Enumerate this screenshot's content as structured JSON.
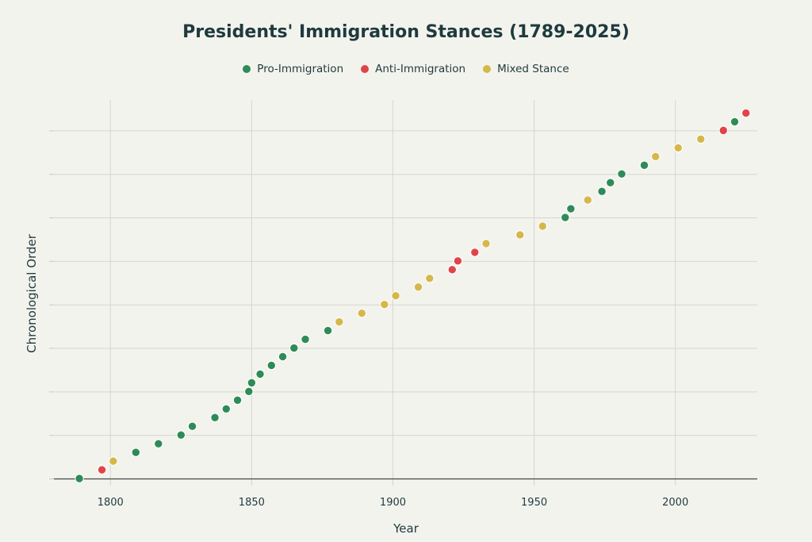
{
  "chart_data": {
    "type": "scatter",
    "title": "Presidents' Immigration Stances (1789-2025)",
    "xlabel": "Year",
    "ylabel": "Chronological Order",
    "xlim": [
      1780,
      2029
    ],
    "ylim": [
      1,
      44.5
    ],
    "x_ticks": [
      1800,
      1850,
      1900,
      1950,
      2000
    ],
    "y_gridlines": [
      1,
      6,
      11,
      16,
      21,
      26,
      31,
      36,
      41
    ],
    "grid": true,
    "legend_position": "top-center",
    "legend": [
      {
        "key": "pro",
        "label": "Pro-Immigration",
        "color": "#2e8b57"
      },
      {
        "key": "anti",
        "label": "Anti-Immigration",
        "color": "#e04448"
      },
      {
        "key": "mixed",
        "label": "Mixed Stance",
        "color": "#d6b84a"
      }
    ],
    "points": [
      {
        "x": 1789,
        "y": 1,
        "s": "pro"
      },
      {
        "x": 1797,
        "y": 2,
        "s": "anti"
      },
      {
        "x": 1801,
        "y": 3,
        "s": "mixed"
      },
      {
        "x": 1809,
        "y": 4,
        "s": "pro"
      },
      {
        "x": 1817,
        "y": 5,
        "s": "pro"
      },
      {
        "x": 1825,
        "y": 6,
        "s": "pro"
      },
      {
        "x": 1829,
        "y": 7,
        "s": "pro"
      },
      {
        "x": 1837,
        "y": 8,
        "s": "pro"
      },
      {
        "x": 1841,
        "y": 9,
        "s": "pro"
      },
      {
        "x": 1845,
        "y": 10,
        "s": "pro"
      },
      {
        "x": 1849,
        "y": 11,
        "s": "pro"
      },
      {
        "x": 1850,
        "y": 12,
        "s": "pro"
      },
      {
        "x": 1853,
        "y": 13,
        "s": "pro"
      },
      {
        "x": 1857,
        "y": 14,
        "s": "pro"
      },
      {
        "x": 1861,
        "y": 15,
        "s": "pro"
      },
      {
        "x": 1865,
        "y": 16,
        "s": "pro"
      },
      {
        "x": 1869,
        "y": 17,
        "s": "pro"
      },
      {
        "x": 1877,
        "y": 18,
        "s": "pro"
      },
      {
        "x": 1881,
        "y": 19,
        "s": "mixed"
      },
      {
        "x": 1889,
        "y": 20,
        "s": "mixed"
      },
      {
        "x": 1897,
        "y": 21,
        "s": "mixed"
      },
      {
        "x": 1901,
        "y": 22,
        "s": "mixed"
      },
      {
        "x": 1909,
        "y": 23,
        "s": "mixed"
      },
      {
        "x": 1913,
        "y": 24,
        "s": "mixed"
      },
      {
        "x": 1921,
        "y": 25,
        "s": "anti"
      },
      {
        "x": 1923,
        "y": 26,
        "s": "anti"
      },
      {
        "x": 1929,
        "y": 27,
        "s": "anti"
      },
      {
        "x": 1933,
        "y": 28,
        "s": "mixed"
      },
      {
        "x": 1945,
        "y": 29,
        "s": "mixed"
      },
      {
        "x": 1953,
        "y": 30,
        "s": "mixed"
      },
      {
        "x": 1961,
        "y": 31,
        "s": "pro"
      },
      {
        "x": 1963,
        "y": 32,
        "s": "pro"
      },
      {
        "x": 1969,
        "y": 33,
        "s": "mixed"
      },
      {
        "x": 1974,
        "y": 34,
        "s": "pro"
      },
      {
        "x": 1977,
        "y": 35,
        "s": "pro"
      },
      {
        "x": 1981,
        "y": 36,
        "s": "pro"
      },
      {
        "x": 1989,
        "y": 37,
        "s": "pro"
      },
      {
        "x": 1993,
        "y": 38,
        "s": "mixed"
      },
      {
        "x": 2001,
        "y": 39,
        "s": "mixed"
      },
      {
        "x": 2009,
        "y": 40,
        "s": "mixed"
      },
      {
        "x": 2017,
        "y": 41,
        "s": "anti"
      },
      {
        "x": 2021,
        "y": 42,
        "s": "pro"
      },
      {
        "x": 2025,
        "y": 43,
        "s": "anti"
      }
    ]
  }
}
